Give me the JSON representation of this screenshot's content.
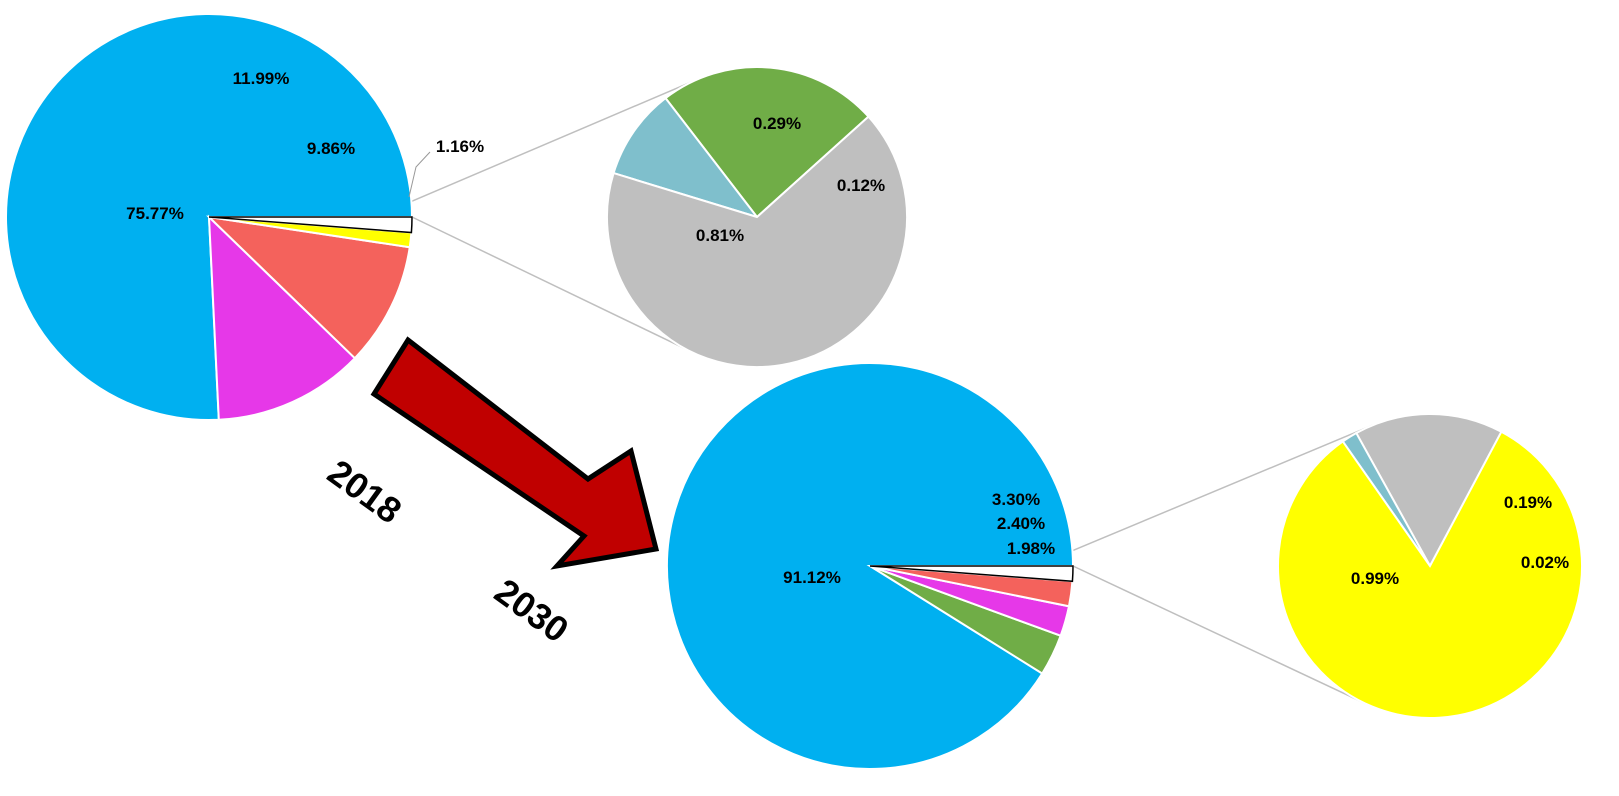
{
  "chart_data": [
    {
      "type": "pie",
      "title": "",
      "slices": [
        {
          "label": "75.77%",
          "value": 75.77,
          "color": "#00B0F0"
        },
        {
          "label": "11.99%",
          "value": 11.99,
          "color": "#E638E8"
        },
        {
          "label": "9.86%",
          "value": 9.86,
          "color": "#F4625C"
        },
        {
          "label": "1.16%",
          "value": 1.16,
          "color": "#FFFF00"
        },
        {
          "label": "",
          "value": 1.22,
          "color": "#FFFFFF",
          "outlined": true,
          "exploded_into": "2018-detail"
        }
      ]
    },
    {
      "type": "pie",
      "title": "",
      "id": "2018-detail",
      "slices": [
        {
          "label": "0.29%",
          "value": 0.29,
          "color": "#70AD47"
        },
        {
          "label": "0.12%",
          "value": 0.12,
          "color": "#7FBFCC"
        },
        {
          "label": "0.81%",
          "value": 0.81,
          "color": "#BFBFBF"
        }
      ]
    },
    {
      "type": "pie",
      "title": "",
      "slices": [
        {
          "label": "91.12%",
          "value": 91.12,
          "color": "#00B0F0"
        },
        {
          "label": "3.30%",
          "value": 3.3,
          "color": "#70AD47"
        },
        {
          "label": "2.40%",
          "value": 2.4,
          "color": "#E638E8"
        },
        {
          "label": "1.98%",
          "value": 1.98,
          "color": "#F4625C"
        },
        {
          "label": "",
          "value": 1.2,
          "color": "#FFFFFF",
          "outlined": true,
          "exploded_into": "2030-detail"
        }
      ]
    },
    {
      "type": "pie",
      "title": "",
      "id": "2030-detail",
      "slices": [
        {
          "label": "0.19%",
          "value": 0.19,
          "color": "#BFBFBF"
        },
        {
          "label": "0.02%",
          "value": 0.02,
          "color": "#7FBFCC"
        },
        {
          "label": "0.99%",
          "value": 0.99,
          "color": "#FFFF00"
        }
      ]
    }
  ],
  "years": {
    "from": "2018",
    "to": "2030"
  },
  "arrow": {
    "color": "#C00000",
    "outline": "#000000"
  },
  "connector_color": "#BFBFBF"
}
